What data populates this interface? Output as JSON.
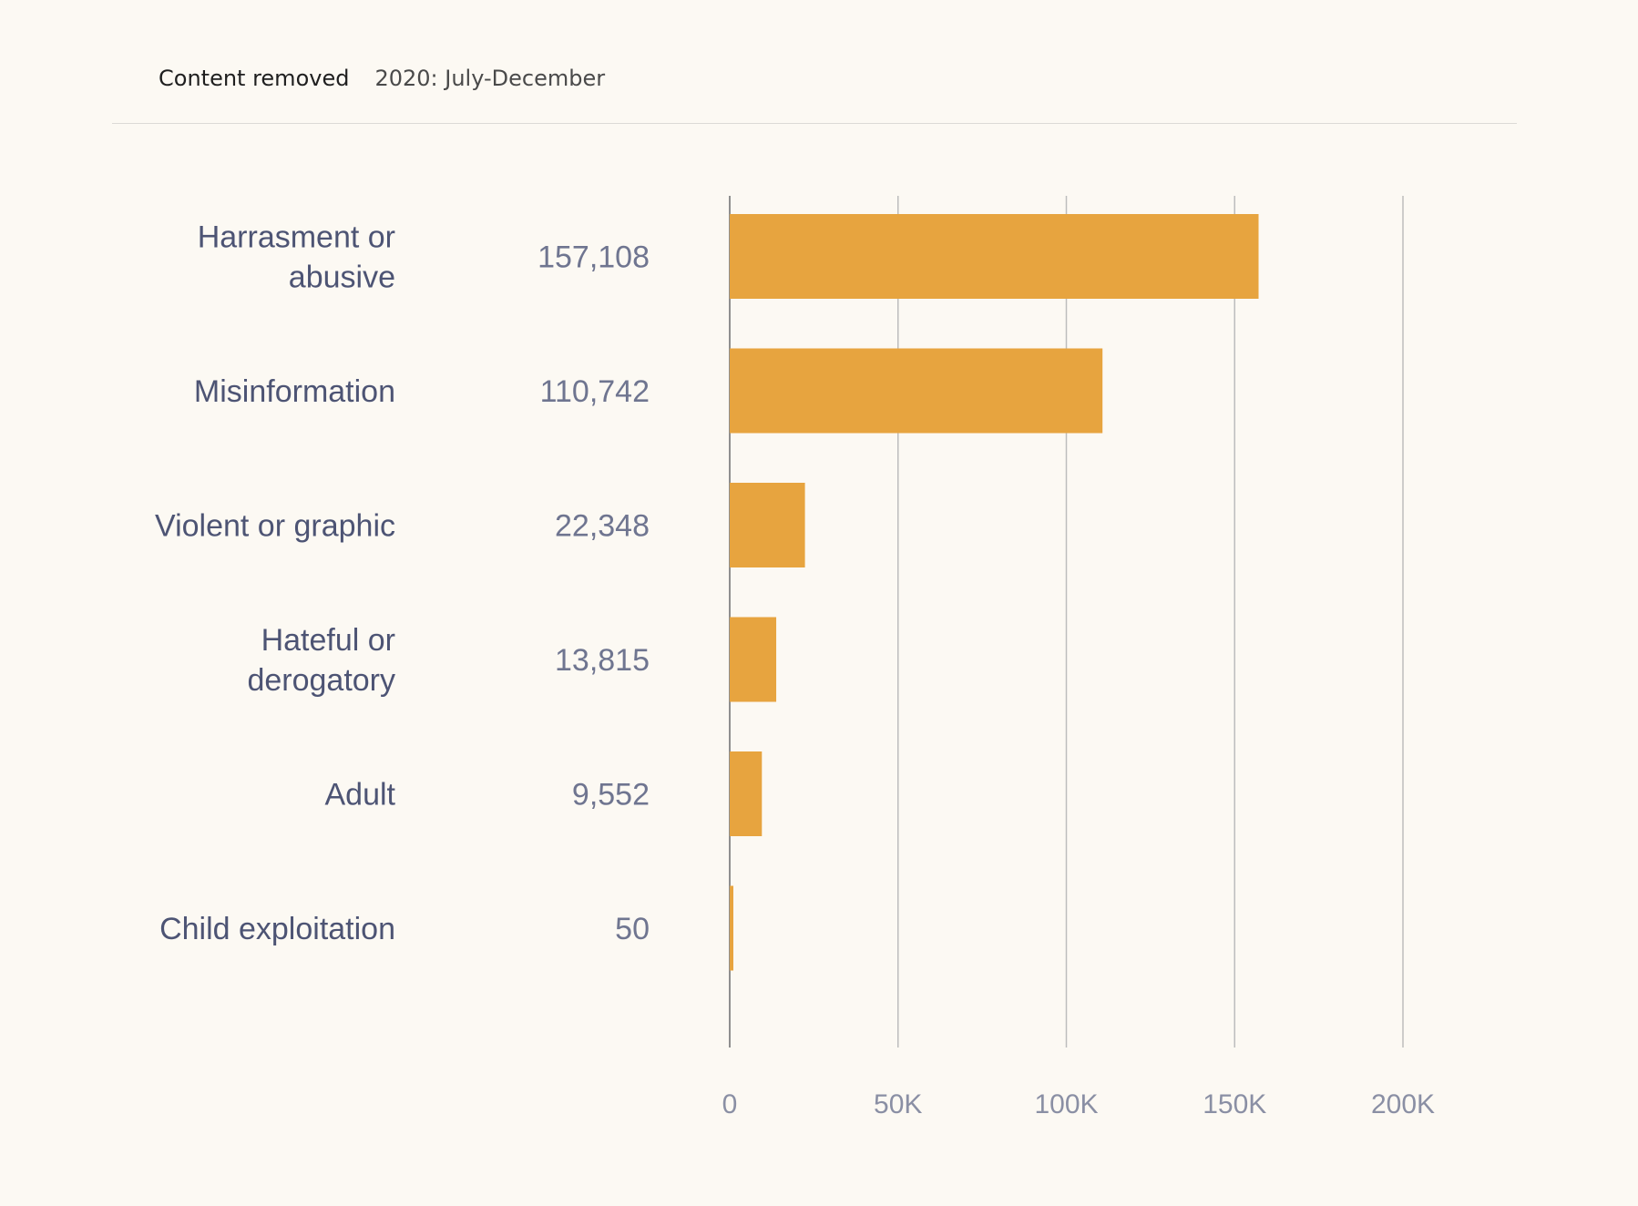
{
  "header": {
    "title": "Content removed",
    "period": "2020: July-December"
  },
  "colors": {
    "bar": "#e7a43f",
    "grid": "#bdbdbd",
    "axis": "#8f8f8f",
    "background": "#fcf9f3"
  },
  "chart_data": {
    "type": "bar",
    "orientation": "horizontal",
    "title": "Content removed",
    "subtitle": "2020: July-December",
    "categories": [
      [
        "Harrasment or",
        "abusive"
      ],
      [
        "Misinformation"
      ],
      [
        "Violent or graphic"
      ],
      [
        "Hateful or",
        "derogatory"
      ],
      [
        "Adult"
      ],
      [
        "Child exploitation"
      ]
    ],
    "values": [
      157108,
      110742,
      22348,
      13815,
      9552,
      50
    ],
    "value_labels": [
      "157,108",
      "110,742",
      "22,348",
      "13,815",
      "9,552",
      "50"
    ],
    "xlim": [
      0,
      200000
    ],
    "ticks": [
      0,
      50000,
      100000,
      150000,
      200000
    ],
    "tick_labels": [
      "0",
      "50K",
      "100K",
      "150K",
      "200K"
    ],
    "grid": true,
    "xlabel": "",
    "ylabel": ""
  }
}
